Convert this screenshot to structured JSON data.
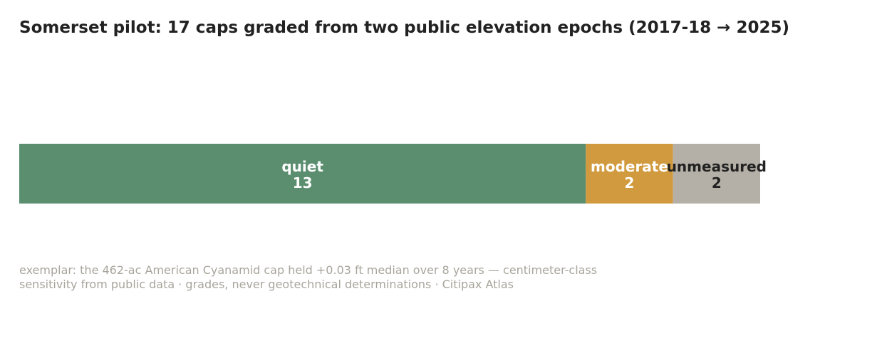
{
  "chart_data": {
    "type": "bar",
    "orientation": "horizontal-stacked",
    "title": "Somerset pilot: 17 caps graded from two public elevation epochs (2017-18 → 2025)",
    "total": 17,
    "categories": [
      "quiet",
      "moderate",
      "unmeasured"
    ],
    "values": [
      13,
      2,
      2
    ],
    "colors": [
      "#5a8e6e",
      "#d19a3e",
      "#b5b0a7"
    ],
    "label_colors": [
      "#ffffff",
      "#ffffff",
      "#222222"
    ],
    "footnote": [
      "exemplar: the 462-ac American Cyanamid cap held +0.03 ft median over 8 years — centimeter-class",
      "sensitivity from public data · grades, never geotechnical determinations · Citipax Atlas"
    ],
    "grid": false,
    "legend": "none"
  }
}
